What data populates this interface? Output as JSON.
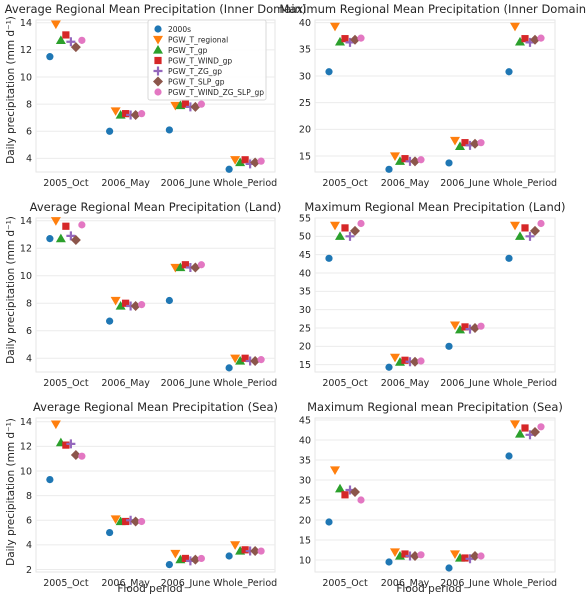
{
  "figure": {
    "ylabel": "Daily precipitation (mm d⁻¹)",
    "xlabel": "Flood period"
  },
  "legend": [
    {
      "name": "2000s",
      "marker": "circle",
      "color": "#1f77b4"
    },
    {
      "name": "PGW_T_regional",
      "marker": "triangle-down",
      "color": "#ff7f0e"
    },
    {
      "name": "PGW_T_gp",
      "marker": "triangle-up",
      "color": "#2ca02c"
    },
    {
      "name": "PGW_T_WIND_gp",
      "marker": "square",
      "color": "#d62728"
    },
    {
      "name": "PGW_T_ZG_gp",
      "marker": "plus",
      "color": "#9467bd"
    },
    {
      "name": "PGW_T_SLP_gp",
      "marker": "diamond",
      "color": "#8c564b"
    },
    {
      "name": "PGW_T_WIND_ZG_SLP_gp",
      "marker": "circle",
      "color": "#e377c2"
    }
  ],
  "chart_data": [
    {
      "type": "scatter",
      "title": "Average Regional Mean Precipitation (Inner Domain)",
      "categories": [
        "2005_Oct",
        "2006_May",
        "2006_June",
        "Whole_Period"
      ],
      "yticks": [
        4,
        6,
        8,
        10,
        12,
        14
      ],
      "ylim": [
        3,
        14.2
      ],
      "series": [
        {
          "name": "2000s",
          "values": [
            11.5,
            6.0,
            6.1,
            3.2
          ]
        },
        {
          "name": "PGW_T_regional",
          "values": [
            13.9,
            7.5,
            7.9,
            3.9
          ]
        },
        {
          "name": "PGW_T_gp",
          "values": [
            12.7,
            7.2,
            7.9,
            3.7
          ]
        },
        {
          "name": "PGW_T_WIND_gp",
          "values": [
            13.1,
            7.3,
            8.0,
            3.9
          ]
        },
        {
          "name": "PGW_T_ZG_gp",
          "values": [
            12.6,
            7.2,
            7.8,
            3.6
          ]
        },
        {
          "name": "PGW_T_SLP_gp",
          "values": [
            12.2,
            7.2,
            7.8,
            3.7
          ]
        },
        {
          "name": "PGW_T_WIND_ZG_SLP_gp",
          "values": [
            12.7,
            7.3,
            8.0,
            3.8
          ]
        }
      ]
    },
    {
      "type": "scatter",
      "title": "Maximum Regional Mean Precipitation (Inner Domain)",
      "categories": [
        "2005_Oct",
        "2006_May",
        "2006_June",
        "Whole_Period"
      ],
      "yticks": [
        15,
        20,
        25,
        30,
        35,
        40
      ],
      "ylim": [
        12,
        40.5
      ],
      "series": [
        {
          "name": "2000s",
          "values": [
            30.8,
            12.5,
            13.7,
            30.8
          ]
        },
        {
          "name": "PGW_T_regional",
          "values": [
            39.3,
            15.0,
            17.9,
            39.3
          ]
        },
        {
          "name": "PGW_T_gp",
          "values": [
            36.4,
            14.0,
            16.8,
            36.4
          ]
        },
        {
          "name": "PGW_T_WIND_gp",
          "values": [
            37.0,
            14.5,
            17.5,
            37.0
          ]
        },
        {
          "name": "PGW_T_ZG_gp",
          "values": [
            36.3,
            14.0,
            17.0,
            36.3
          ]
        },
        {
          "name": "PGW_T_SLP_gp",
          "values": [
            36.8,
            14.0,
            17.3,
            36.8
          ]
        },
        {
          "name": "PGW_T_WIND_ZG_SLP_gp",
          "values": [
            37.1,
            14.3,
            17.5,
            37.1
          ]
        }
      ]
    },
    {
      "type": "scatter",
      "title": "Average Regional Mean Precipitation (Land)",
      "categories": [
        "2005_Oct",
        "2006_May",
        "2006_June",
        "Whole_Period"
      ],
      "yticks": [
        4,
        6,
        8,
        10,
        12,
        14
      ],
      "ylim": [
        3,
        14.2
      ],
      "series": [
        {
          "name": "2000s",
          "values": [
            12.7,
            6.7,
            8.2,
            3.3
          ]
        },
        {
          "name": "PGW_T_regional",
          "values": [
            14.0,
            8.2,
            10.6,
            4.0
          ]
        },
        {
          "name": "PGW_T_gp",
          "values": [
            12.7,
            7.8,
            10.6,
            3.8
          ]
        },
        {
          "name": "PGW_T_WIND_gp",
          "values": [
            13.6,
            8.0,
            10.8,
            4.0
          ]
        },
        {
          "name": "PGW_T_ZG_gp",
          "values": [
            12.9,
            7.8,
            10.6,
            3.8
          ]
        },
        {
          "name": "PGW_T_SLP_gp",
          "values": [
            12.6,
            7.8,
            10.6,
            3.8
          ]
        },
        {
          "name": "PGW_T_WIND_ZG_SLP_gp",
          "values": [
            13.7,
            7.9,
            10.8,
            3.9
          ]
        }
      ]
    },
    {
      "type": "scatter",
      "title": "Maximum Regional Mean Precipitation (Land)",
      "categories": [
        "2005_Oct",
        "2006_May",
        "2006_June",
        "Whole_Period"
      ],
      "yticks": [
        15,
        20,
        25,
        30,
        35,
        40,
        45,
        50,
        55
      ],
      "ylim": [
        13,
        55
      ],
      "series": [
        {
          "name": "2000s",
          "values": [
            44.0,
            14.3,
            20.0,
            44.0
          ]
        },
        {
          "name": "PGW_T_regional",
          "values": [
            53.0,
            17.0,
            25.8,
            53.0
          ]
        },
        {
          "name": "PGW_T_gp",
          "values": [
            50.0,
            15.7,
            24.5,
            50.0
          ]
        },
        {
          "name": "PGW_T_WIND_gp",
          "values": [
            52.3,
            16.2,
            25.3,
            52.3
          ]
        },
        {
          "name": "PGW_T_ZG_gp",
          "values": [
            50.0,
            15.8,
            24.7,
            50.0
          ]
        },
        {
          "name": "PGW_T_SLP_gp",
          "values": [
            51.5,
            15.8,
            25.0,
            51.5
          ]
        },
        {
          "name": "PGW_T_WIND_ZG_SLP_gp",
          "values": [
            53.5,
            16.0,
            25.5,
            53.5
          ]
        }
      ]
    },
    {
      "type": "scatter",
      "title": "Average Regional Mean Precipitation (Sea)",
      "categories": [
        "2005_Oct",
        "2006_May",
        "2006_June",
        "Whole_Period"
      ],
      "yticks": [
        2,
        4,
        6,
        8,
        10,
        12,
        14
      ],
      "ylim": [
        1.8,
        14.3
      ],
      "series": [
        {
          "name": "2000s",
          "values": [
            9.3,
            5.0,
            2.4,
            3.1
          ]
        },
        {
          "name": "PGW_T_regional",
          "values": [
            13.8,
            6.1,
            3.3,
            4.0
          ]
        },
        {
          "name": "PGW_T_gp",
          "values": [
            12.3,
            5.9,
            2.8,
            3.5
          ]
        },
        {
          "name": "PGW_T_WIND_gp",
          "values": [
            12.1,
            5.9,
            2.9,
            3.6
          ]
        },
        {
          "name": "PGW_T_ZG_gp",
          "values": [
            12.2,
            6.0,
            2.7,
            3.5
          ]
        },
        {
          "name": "PGW_T_SLP_gp",
          "values": [
            11.3,
            5.9,
            2.8,
            3.5
          ]
        },
        {
          "name": "PGW_T_WIND_ZG_SLP_gp",
          "values": [
            11.2,
            5.9,
            2.9,
            3.5
          ]
        }
      ]
    },
    {
      "type": "scatter",
      "title": "Maximum Regional mean Precipitation (Sea)",
      "categories": [
        "2005_Oct",
        "2006_May",
        "2006_June",
        "Whole_Period"
      ],
      "yticks": [
        10,
        15,
        20,
        25,
        30,
        35,
        40,
        45
      ],
      "ylim": [
        7,
        45.5
      ],
      "series": [
        {
          "name": "2000s",
          "values": [
            19.5,
            9.5,
            8.0,
            36.0
          ]
        },
        {
          "name": "PGW_T_regional",
          "values": [
            32.5,
            12.0,
            11.5,
            44.0
          ]
        },
        {
          "name": "PGW_T_gp",
          "values": [
            27.8,
            11.0,
            10.5,
            41.5
          ]
        },
        {
          "name": "PGW_T_WIND_gp",
          "values": [
            26.3,
            11.5,
            10.5,
            43.0
          ]
        },
        {
          "name": "PGW_T_ZG_gp",
          "values": [
            27.5,
            11.0,
            10.3,
            41.3
          ]
        },
        {
          "name": "PGW_T_SLP_gp",
          "values": [
            27.0,
            11.0,
            11.0,
            42.0
          ]
        },
        {
          "name": "PGW_T_WIND_ZG_SLP_gp",
          "values": [
            25.0,
            11.3,
            11.0,
            43.3
          ]
        }
      ]
    }
  ]
}
